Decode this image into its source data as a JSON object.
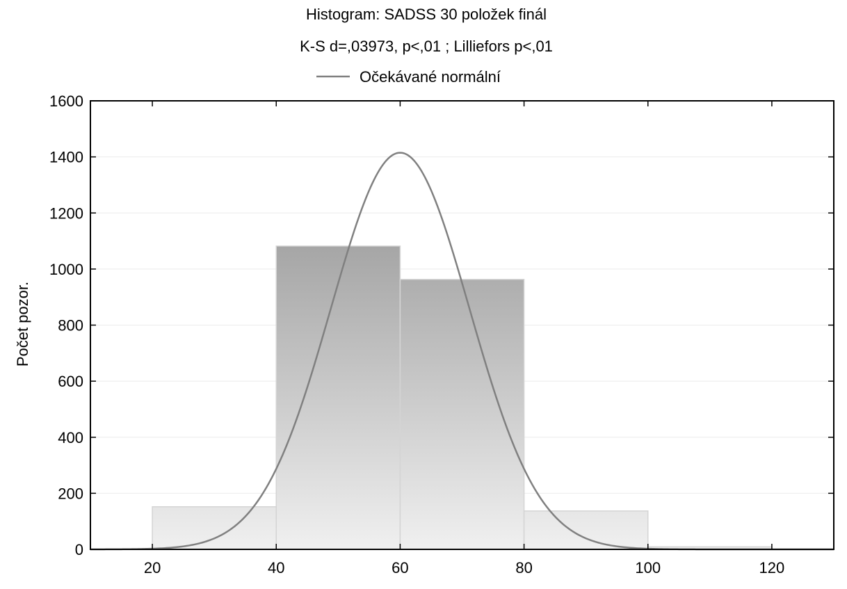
{
  "chart_data": {
    "type": "bar",
    "title": "Histogram: SADSS 30 položek finál",
    "subtitle": "K-S d=,03973, p<,01 ; Lilliefors p<,01",
    "legend": {
      "label": "Očekávané normální",
      "position": "top-center"
    },
    "xlabel": "",
    "ylabel": "Počet pozor.",
    "xlim": [
      10,
      130
    ],
    "ylim": [
      0,
      1600
    ],
    "xticks": [
      20,
      40,
      60,
      80,
      100,
      120
    ],
    "yticks": [
      0,
      200,
      400,
      600,
      800,
      1000,
      1200,
      1400,
      1600
    ],
    "grid": true,
    "bins": [
      {
        "x0": 20,
        "x1": 40,
        "count": 152
      },
      {
        "x0": 40,
        "x1": 60,
        "count": 1082
      },
      {
        "x0": 60,
        "x1": 80,
        "count": 963
      },
      {
        "x0": 80,
        "x1": 100,
        "count": 137
      },
      {
        "x0": 100,
        "x1": 120,
        "count": 9
      }
    ],
    "expected_normal": {
      "name": "Očekávané normální",
      "mean": 60,
      "peak": 1415,
      "sd": 11.2
    }
  },
  "colors": {
    "curve": "#808080",
    "bar_top": "#9a9a9a",
    "bar_bottom": "#f0f0f0",
    "bar_edge": "#d4d4d4",
    "grid": "#ebebeb",
    "axis": "#000000"
  }
}
